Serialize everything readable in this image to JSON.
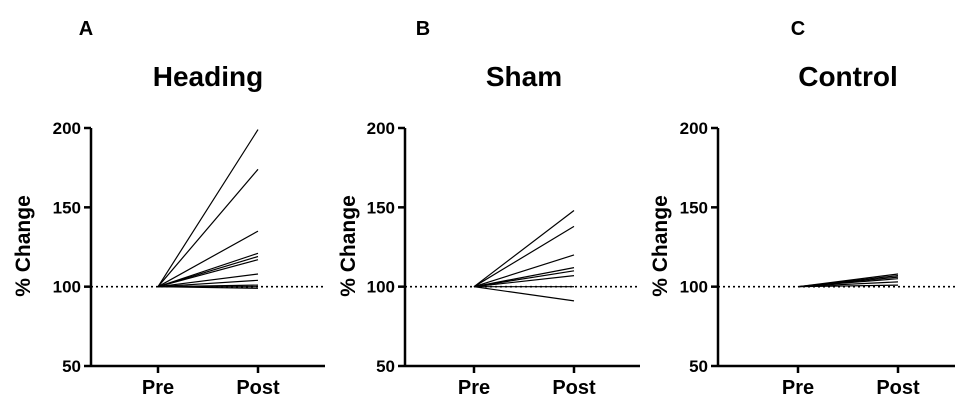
{
  "chart_data": [
    {
      "type": "line",
      "panel_letter": "A",
      "title": "Heading",
      "xlabel": "",
      "ylabel": "% Change",
      "categories": [
        "Pre",
        "Post"
      ],
      "ylim": [
        50,
        200
      ],
      "yticks": [
        50,
        100,
        150,
        200
      ],
      "reference_line": 100,
      "series": [
        {
          "values": [
            100,
            199
          ]
        },
        {
          "values": [
            100,
            174
          ]
        },
        {
          "values": [
            100,
            135
          ]
        },
        {
          "values": [
            100,
            121
          ]
        },
        {
          "values": [
            100,
            119
          ]
        },
        {
          "values": [
            100,
            117
          ]
        },
        {
          "values": [
            100,
            108
          ]
        },
        {
          "values": [
            100,
            104
          ]
        },
        {
          "values": [
            100,
            101
          ]
        },
        {
          "values": [
            100,
            100
          ]
        },
        {
          "values": [
            100,
            99
          ]
        }
      ]
    },
    {
      "type": "line",
      "panel_letter": "B",
      "title": "Sham",
      "xlabel": "",
      "ylabel": "% Change",
      "categories": [
        "Pre",
        "Post"
      ],
      "ylim": [
        50,
        200
      ],
      "yticks": [
        50,
        100,
        150,
        200
      ],
      "reference_line": 100,
      "series": [
        {
          "values": [
            100,
            148
          ]
        },
        {
          "values": [
            100,
            138
          ]
        },
        {
          "values": [
            100,
            120
          ]
        },
        {
          "values": [
            100,
            112
          ]
        },
        {
          "values": [
            100,
            110
          ]
        },
        {
          "values": [
            100,
            107
          ]
        },
        {
          "values": [
            100,
            100
          ]
        },
        {
          "values": [
            100,
            91
          ]
        }
      ]
    },
    {
      "type": "line",
      "panel_letter": "C",
      "title": "Control",
      "xlabel": "",
      "ylabel": "% Change",
      "categories": [
        "Pre",
        "Post"
      ],
      "ylim": [
        50,
        200
      ],
      "yticks": [
        50,
        100,
        150,
        200
      ],
      "reference_line": 100,
      "series": [
        {
          "values": [
            100,
            108
          ]
        },
        {
          "values": [
            100,
            107
          ]
        },
        {
          "values": [
            100,
            106
          ]
        },
        {
          "values": [
            100,
            105
          ]
        },
        {
          "values": [
            100,
            103
          ]
        },
        {
          "values": [
            100,
            101
          ]
        }
      ]
    }
  ]
}
